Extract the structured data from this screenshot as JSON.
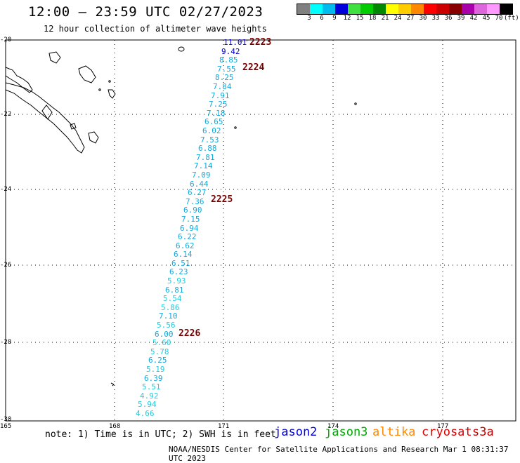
{
  "title": "12:00 — 23:59 UTC 02/27/2023",
  "subtitle": "12 hour collection of altimeter wave heights",
  "colorbar": {
    "colors": [
      "#808080",
      "#00ffff",
      "#00bbee",
      "#0000dd",
      "#40e040",
      "#00cc00",
      "#008800",
      "#ffff00",
      "#ffcc00",
      "#ff8800",
      "#ff0000",
      "#cc0000",
      "#880000",
      "#aa00aa",
      "#dd66dd",
      "#ff99ff",
      "#000000"
    ],
    "labels": [
      "3",
      "6",
      "9",
      "12",
      "15",
      "18",
      "21",
      "24",
      "27",
      "30",
      "33",
      "36",
      "39",
      "42",
      "45",
      "70"
    ],
    "unit": "(ft)"
  },
  "lat_labels": [
    "-20",
    "-22",
    "-24",
    "-26",
    "-28",
    "-30"
  ],
  "lon_labels": [
    "165",
    "168",
    "171",
    "174",
    "177"
  ],
  "wave_heights": [
    {
      "v": "11.01",
      "c": "#0000cc"
    },
    {
      "v": "9.42",
      "c": "#0000cc"
    },
    {
      "v": "8.85",
      "c": "#11aadd"
    },
    {
      "v": "7.55",
      "c": "#11aadd"
    },
    {
      "v": "8.25",
      "c": "#11aadd"
    },
    {
      "v": "7.84",
      "c": "#11aadd"
    },
    {
      "v": "7.91",
      "c": "#11aadd"
    },
    {
      "v": "7.25",
      "c": "#11aadd"
    },
    {
      "v": "7.18",
      "c": "#11aadd"
    },
    {
      "v": "6.65",
      "c": "#11aadd"
    },
    {
      "v": "6.02",
      "c": "#11aadd"
    },
    {
      "v": "7.53",
      "c": "#11aadd"
    },
    {
      "v": "6.88",
      "c": "#11aadd"
    },
    {
      "v": "7.81",
      "c": "#11aadd"
    },
    {
      "v": "7.14",
      "c": "#11aadd"
    },
    {
      "v": "7.09",
      "c": "#11aadd"
    },
    {
      "v": "6.44",
      "c": "#11aadd"
    },
    {
      "v": "6.27",
      "c": "#11aadd"
    },
    {
      "v": "7.36",
      "c": "#11aadd"
    },
    {
      "v": "6.90",
      "c": "#11aadd"
    },
    {
      "v": "7.15",
      "c": "#11aadd"
    },
    {
      "v": "6.94",
      "c": "#11aadd"
    },
    {
      "v": "6.22",
      "c": "#11aadd"
    },
    {
      "v": "6.62",
      "c": "#11aadd"
    },
    {
      "v": "6.14",
      "c": "#11aadd"
    },
    {
      "v": "6.51",
      "c": "#11aadd"
    },
    {
      "v": "6.23",
      "c": "#11aadd"
    },
    {
      "v": "5.93",
      "c": "#22ccdd"
    },
    {
      "v": "6.81",
      "c": "#11aadd"
    },
    {
      "v": "5.54",
      "c": "#22ccdd"
    },
    {
      "v": "5.86",
      "c": "#22ccdd"
    },
    {
      "v": "7.10",
      "c": "#11aadd"
    },
    {
      "v": "5.56",
      "c": "#22ccdd"
    },
    {
      "v": "6.00",
      "c": "#11aadd"
    },
    {
      "v": "5.60",
      "c": "#22ccdd"
    },
    {
      "v": "5.78",
      "c": "#22ccdd"
    },
    {
      "v": "6.25",
      "c": "#11aadd"
    },
    {
      "v": "5.19",
      "c": "#22ccdd"
    },
    {
      "v": "6.39",
      "c": "#11aadd"
    },
    {
      "v": "5.51",
      "c": "#22ccdd"
    },
    {
      "v": "4.92",
      "c": "#22ccdd"
    },
    {
      "v": "5.94",
      "c": "#22ccdd"
    },
    {
      "v": "4.66",
      "c": "#22ccdd"
    }
  ],
  "pass_labels": [
    "2223",
    "2224",
    "2225",
    "2226"
  ],
  "note": "note: 1) Time is in UTC; 2) SWH is in feet",
  "legend": [
    {
      "name": "jason2",
      "color": "#0000dd"
    },
    {
      "name": "jason3",
      "color": "#00aa00"
    },
    {
      "name": "altika",
      "color": "#ff8800"
    },
    {
      "name": "cryosat",
      "color": "#dd0000"
    },
    {
      "name": "s3a",
      "color": "#cc0000"
    }
  ],
  "credit": "NOAA/NESDIS Center for Satellite Applications and Research   Mar  1 08:31:37 UTC 2023"
}
